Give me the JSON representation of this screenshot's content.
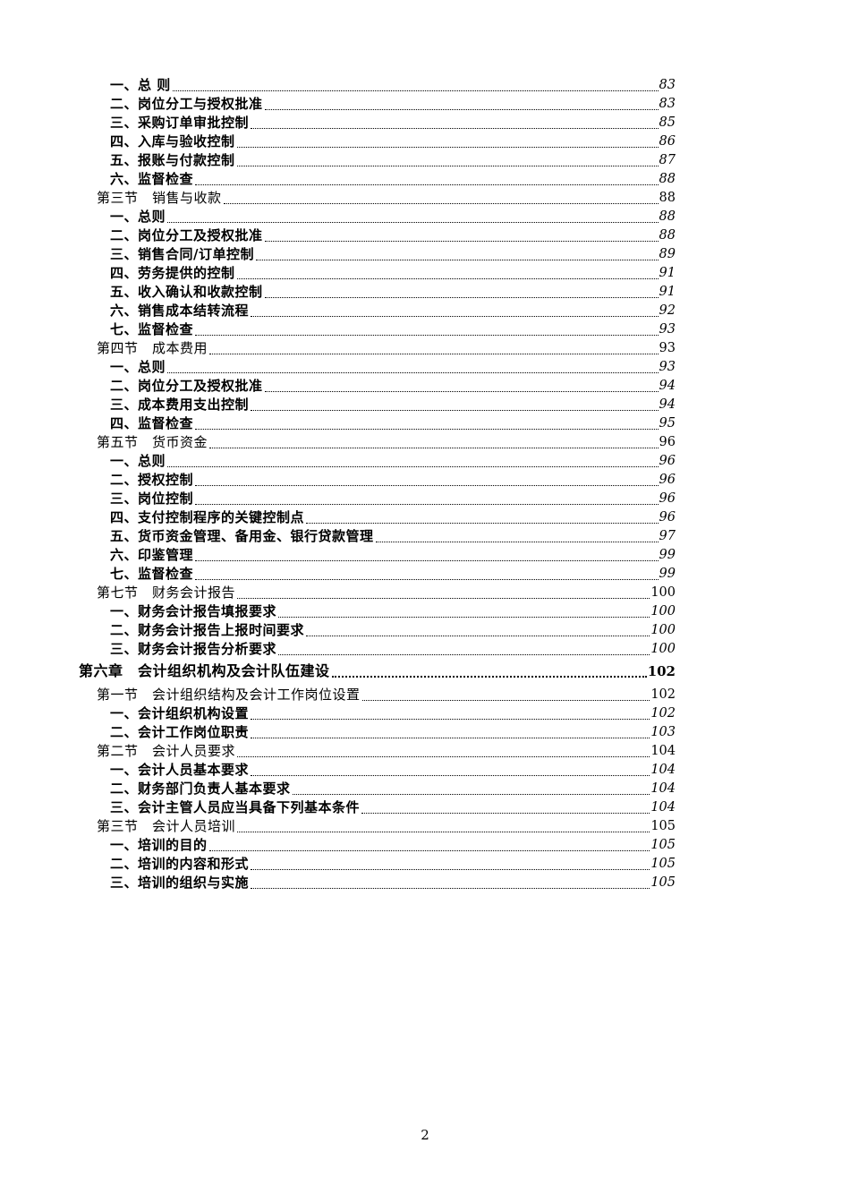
{
  "colors": {
    "page_background": "#ffffff",
    "text": "#000000"
  },
  "footer": {
    "page_number": "2"
  },
  "toc": {
    "entries": [
      {
        "level": "item",
        "text": "一、总 则",
        "page": "83"
      },
      {
        "level": "item",
        "text": "二、岗位分工与授权批准",
        "page": "83"
      },
      {
        "level": "item",
        "text": "三、采购订单审批控制",
        "page": "85"
      },
      {
        "level": "item",
        "text": "四、入库与验收控制",
        "page": "86"
      },
      {
        "level": "item",
        "text": "五、报账与付款控制",
        "page": "87"
      },
      {
        "level": "item",
        "text": "六、监督检查",
        "page": "88"
      },
      {
        "level": "section",
        "text": "第三节　销售与收款",
        "page": "88"
      },
      {
        "level": "item",
        "text": "一、总则",
        "page": "88"
      },
      {
        "level": "item",
        "text": "二、岗位分工及授权批准",
        "page": "88"
      },
      {
        "level": "item",
        "text": "三、销售合同/订单控制",
        "page": "89"
      },
      {
        "level": "item",
        "text": "四、劳务提供的控制",
        "page": "91"
      },
      {
        "level": "item",
        "text": "五、收入确认和收款控制",
        "page": "91"
      },
      {
        "level": "item",
        "text": "六、销售成本结转流程",
        "page": "92"
      },
      {
        "level": "item",
        "text": "七、监督检查",
        "page": "93"
      },
      {
        "level": "section",
        "text": "第四节　成本费用",
        "page": "93"
      },
      {
        "level": "item",
        "text": "一、总则",
        "page": "93"
      },
      {
        "level": "item",
        "text": "二、岗位分工及授权批准",
        "page": "94"
      },
      {
        "level": "item",
        "text": "三、成本费用支出控制",
        "page": "94"
      },
      {
        "level": "item",
        "text": "四、监督检查",
        "page": "95"
      },
      {
        "level": "section",
        "text": "第五节　货币资金",
        "page": "96"
      },
      {
        "level": "item",
        "text": "一、总则",
        "page": "96"
      },
      {
        "level": "item",
        "text": "二、授权控制",
        "page": "96"
      },
      {
        "level": "item",
        "text": "三、岗位控制",
        "page": "96"
      },
      {
        "level": "item",
        "text": "四、支付控制程序的关键控制点",
        "page": "96"
      },
      {
        "level": "item",
        "text": "五、货币资金管理、备用金、银行贷款管理",
        "page": "97"
      },
      {
        "level": "item",
        "text": "六、印鉴管理",
        "page": "99"
      },
      {
        "level": "item",
        "text": "七、监督检查",
        "page": "99"
      },
      {
        "level": "section",
        "text": "第七节　财务会计报告",
        "page": "100"
      },
      {
        "level": "item",
        "text": "一、财务会计报告填报要求",
        "page": "100"
      },
      {
        "level": "item",
        "text": "二、财务会计报告上报时间要求",
        "page": "100"
      },
      {
        "level": "item",
        "text": "三、财务会计报告分析要求",
        "page": "100"
      },
      {
        "level": "chapter",
        "text": "第六章　会计组织机构及会计队伍建设",
        "page": "102"
      },
      {
        "level": "section",
        "text": "第一节　会计组织结构及会计工作岗位设置",
        "page": "102"
      },
      {
        "level": "item",
        "text": "一、会计组织机构设置",
        "page": "102"
      },
      {
        "level": "item",
        "text": "二、会计工作岗位职责",
        "page": "103"
      },
      {
        "level": "section",
        "text": "第二节　会计人员要求",
        "page": "104"
      },
      {
        "level": "item",
        "text": "一、会计人员基本要求",
        "page": "104"
      },
      {
        "level": "item",
        "text": "二、财务部门负责人基本要求",
        "page": "104"
      },
      {
        "level": "item",
        "text": "三、会计主管人员应当具备下列基本条件",
        "page": "104"
      },
      {
        "level": "section",
        "text": "第三节　会计人员培训",
        "page": "105"
      },
      {
        "level": "item",
        "text": "一、培训的目的",
        "page": "105"
      },
      {
        "level": "item",
        "text": "二、培训的内容和形式",
        "page": "105"
      },
      {
        "level": "item",
        "text": "三、培训的组织与实施",
        "page": "105"
      }
    ]
  }
}
